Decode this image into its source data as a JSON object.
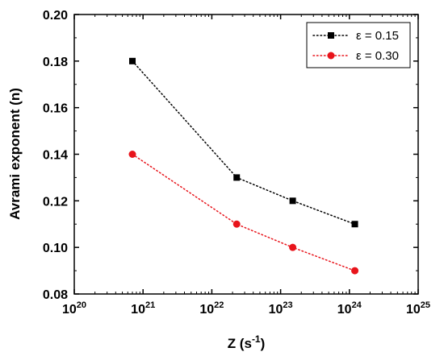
{
  "chart_data": {
    "type": "line",
    "title": "",
    "xlabel": "Z (s⁻¹)",
    "ylabel": "Avrami exponent (n)",
    "x_scale": "log",
    "xlim": [
      1e+20,
      1e+25
    ],
    "ylim": [
      0.08,
      0.2
    ],
    "x_ticks": [
      {
        "value": 1e+20,
        "base": "10",
        "exp": "20"
      },
      {
        "value": 1e+21,
        "base": "10",
        "exp": "21"
      },
      {
        "value": 1e+22,
        "base": "10",
        "exp": "22"
      },
      {
        "value": 1e+23,
        "base": "10",
        "exp": "23"
      },
      {
        "value": 1e+24,
        "base": "10",
        "exp": "24"
      },
      {
        "value": 1e+25,
        "base": "10",
        "exp": "25"
      }
    ],
    "y_ticks": [
      0.08,
      0.1,
      0.12,
      0.14,
      0.16,
      0.18,
      0.2
    ],
    "y_tick_labels": [
      "0.08",
      "0.10",
      "0.12",
      "0.14",
      "0.16",
      "0.18",
      "0.20"
    ],
    "grid": false,
    "legend_position": "top-right",
    "series": [
      {
        "name": "ε = 0.15",
        "color": "#000000",
        "marker": "square",
        "line_style": "dotted",
        "points": [
          {
            "x": 7e+20,
            "y": 0.18
          },
          {
            "x": 2.3e+22,
            "y": 0.13
          },
          {
            "x": 1.5e+23,
            "y": 0.12
          },
          {
            "x": 1.2e+24,
            "y": 0.11
          }
        ]
      },
      {
        "name": "ε = 0.30",
        "color": "#e8141b",
        "marker": "circle",
        "line_style": "dotted",
        "points": [
          {
            "x": 7e+20,
            "y": 0.14
          },
          {
            "x": 2.3e+22,
            "y": 0.11
          },
          {
            "x": 1.5e+23,
            "y": 0.1
          },
          {
            "x": 1.2e+24,
            "y": 0.09
          }
        ]
      }
    ]
  }
}
